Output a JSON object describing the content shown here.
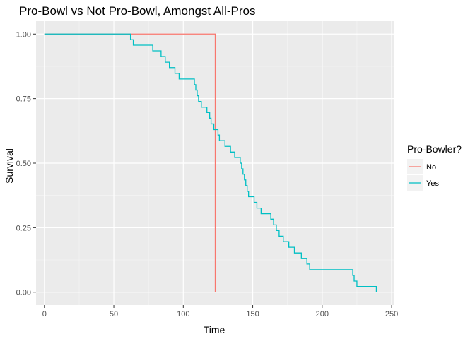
{
  "chart_data": {
    "type": "line",
    "title": "Pro-Bowl vs Not Pro-Bowl, Amongst All-Pros",
    "xlabel": "Time",
    "ylabel": "Survival",
    "xlim": [
      -6,
      252
    ],
    "ylim": [
      -0.05,
      1.05
    ],
    "xticks": [
      0,
      50,
      100,
      150,
      200,
      250
    ],
    "xtick_labels": [
      "0",
      "50",
      "100",
      "150",
      "200",
      "250"
    ],
    "yticks": [
      0,
      0.25,
      0.5,
      0.75,
      1
    ],
    "ytick_labels": [
      "0.00",
      "0.25",
      "0.50",
      "0.75",
      "1.00"
    ],
    "grid": true,
    "legend": {
      "title": "Pro-Bowler?",
      "placement": "right"
    },
    "series": [
      {
        "name": "No",
        "color": "#F8766D",
        "x": [
          0,
          123,
          123
        ],
        "y": [
          1.0,
          1.0,
          0.0
        ]
      },
      {
        "name": "Yes",
        "color": "#00BFC4",
        "x": [
          0,
          62,
          62,
          64,
          64,
          78,
          78,
          84,
          84,
          87,
          87,
          90,
          90,
          94,
          94,
          97,
          97,
          108,
          108,
          109,
          109,
          110,
          110,
          111,
          111,
          113,
          113,
          117,
          117,
          119,
          119,
          120,
          120,
          122,
          122,
          125,
          125,
          126,
          126,
          130,
          130,
          134,
          134,
          137,
          137,
          141,
          141,
          142,
          142,
          143,
          143,
          144,
          144,
          145,
          145,
          146,
          146,
          147,
          147,
          151,
          151,
          153,
          153,
          156,
          156,
          163,
          163,
          165,
          165,
          167,
          167,
          169,
          169,
          172,
          172,
          176,
          176,
          180,
          180,
          185,
          185,
          189,
          189,
          191,
          191,
          222,
          222,
          223,
          223,
          225,
          225,
          239,
          239
        ],
        "y": [
          1.0,
          1.0,
          0.978,
          0.978,
          0.957,
          0.957,
          0.935,
          0.935,
          0.913,
          0.913,
          0.891,
          0.891,
          0.87,
          0.87,
          0.848,
          0.848,
          0.826,
          0.826,
          0.804,
          0.804,
          0.783,
          0.783,
          0.761,
          0.761,
          0.739,
          0.739,
          0.717,
          0.717,
          0.696,
          0.696,
          0.674,
          0.674,
          0.652,
          0.652,
          0.63,
          0.63,
          0.609,
          0.609,
          0.587,
          0.587,
          0.565,
          0.565,
          0.543,
          0.543,
          0.522,
          0.522,
          0.5,
          0.5,
          0.478,
          0.478,
          0.457,
          0.457,
          0.435,
          0.435,
          0.413,
          0.413,
          0.391,
          0.391,
          0.37,
          0.37,
          0.348,
          0.348,
          0.326,
          0.326,
          0.304,
          0.304,
          0.283,
          0.283,
          0.261,
          0.261,
          0.239,
          0.239,
          0.217,
          0.217,
          0.196,
          0.196,
          0.174,
          0.174,
          0.152,
          0.152,
          0.13,
          0.13,
          0.109,
          0.109,
          0.087,
          0.087,
          0.065,
          0.065,
          0.043,
          0.043,
          0.022,
          0.022,
          0.0
        ]
      }
    ]
  }
}
